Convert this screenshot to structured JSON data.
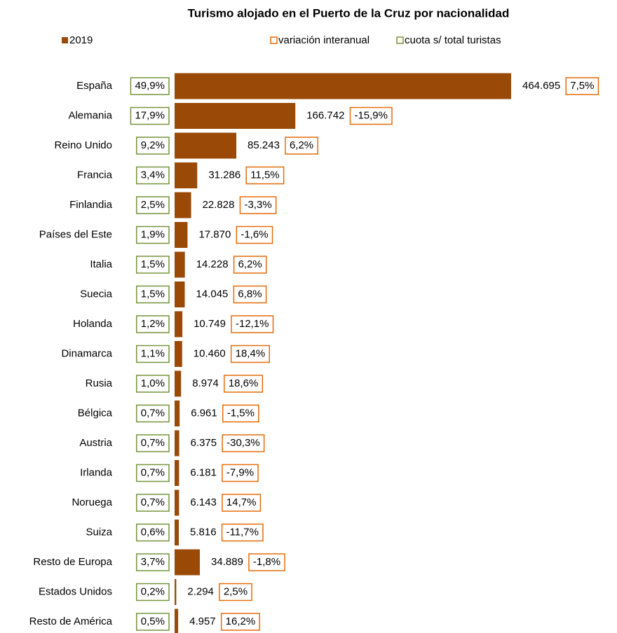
{
  "chart_data": {
    "type": "bar",
    "orientation": "horizontal",
    "title": "Turismo alojado en el Puerto de la Cruz por nacionalidad",
    "categories": [
      "España",
      "Alemania",
      "Reino Unido",
      "Francia",
      "Finlandia",
      "Países del Este",
      "Italia",
      "Suecia",
      "Holanda",
      "Dinamarca",
      "Rusia",
      "Bélgica",
      "Austria",
      "Irlanda",
      "Noruega",
      "Suiza",
      "Resto de Europa",
      "Estados Unidos",
      "Resto de América"
    ],
    "series": [
      {
        "name": "2019",
        "color": "#9a4a06",
        "values": [
          464695,
          166742,
          85243,
          31286,
          22828,
          17870,
          14228,
          14045,
          10749,
          10460,
          8974,
          6961,
          6375,
          6181,
          6143,
          5816,
          34889,
          2294,
          4957
        ],
        "value_labels": [
          "464.695",
          "166.742",
          "85.243",
          "31.286",
          "22.828",
          "17.870",
          "14.228",
          "14.045",
          "10.749",
          "10.460",
          "8.974",
          "6.961",
          "6.375",
          "6.181",
          "6.143",
          "5.816",
          "34.889",
          "2.294",
          "4.957"
        ]
      },
      {
        "name": "variación interanual",
        "color": "#e46c0a",
        "values": [
          7.5,
          -15.9,
          6.2,
          11.5,
          -3.3,
          -1.6,
          6.2,
          6.8,
          -12.1,
          18.4,
          18.6,
          -1.5,
          -30.3,
          -7.9,
          14.7,
          -11.7,
          -1.8,
          2.5,
          16.2
        ],
        "value_labels": [
          "7,5%",
          "-15,9%",
          "6,2%",
          "11,5%",
          "-3,3%",
          "-1,6%",
          "6,2%",
          "6,8%",
          "-12,1%",
          "18,4%",
          "18,6%",
          "-1,5%",
          "-30,3%",
          "-7,9%",
          "14,7%",
          "-11,7%",
          "-1,8%",
          "2,5%",
          "16,2%"
        ]
      },
      {
        "name": "cuota s/ total turistas",
        "color": "#77933c",
        "values": [
          49.9,
          17.9,
          9.2,
          3.4,
          2.5,
          1.9,
          1.5,
          1.5,
          1.2,
          1.1,
          1.0,
          0.7,
          0.7,
          0.7,
          0.7,
          0.6,
          3.7,
          0.2,
          0.5
        ],
        "value_labels": [
          "49,9%",
          "17,9%",
          "9,2%",
          "3,4%",
          "2,5%",
          "1,9%",
          "1,5%",
          "1,5%",
          "1,2%",
          "1,1%",
          "1,0%",
          "0,7%",
          "0,7%",
          "0,7%",
          "0,7%",
          "0,6%",
          "3,7%",
          "0,2%",
          "0,5%"
        ]
      }
    ]
  }
}
